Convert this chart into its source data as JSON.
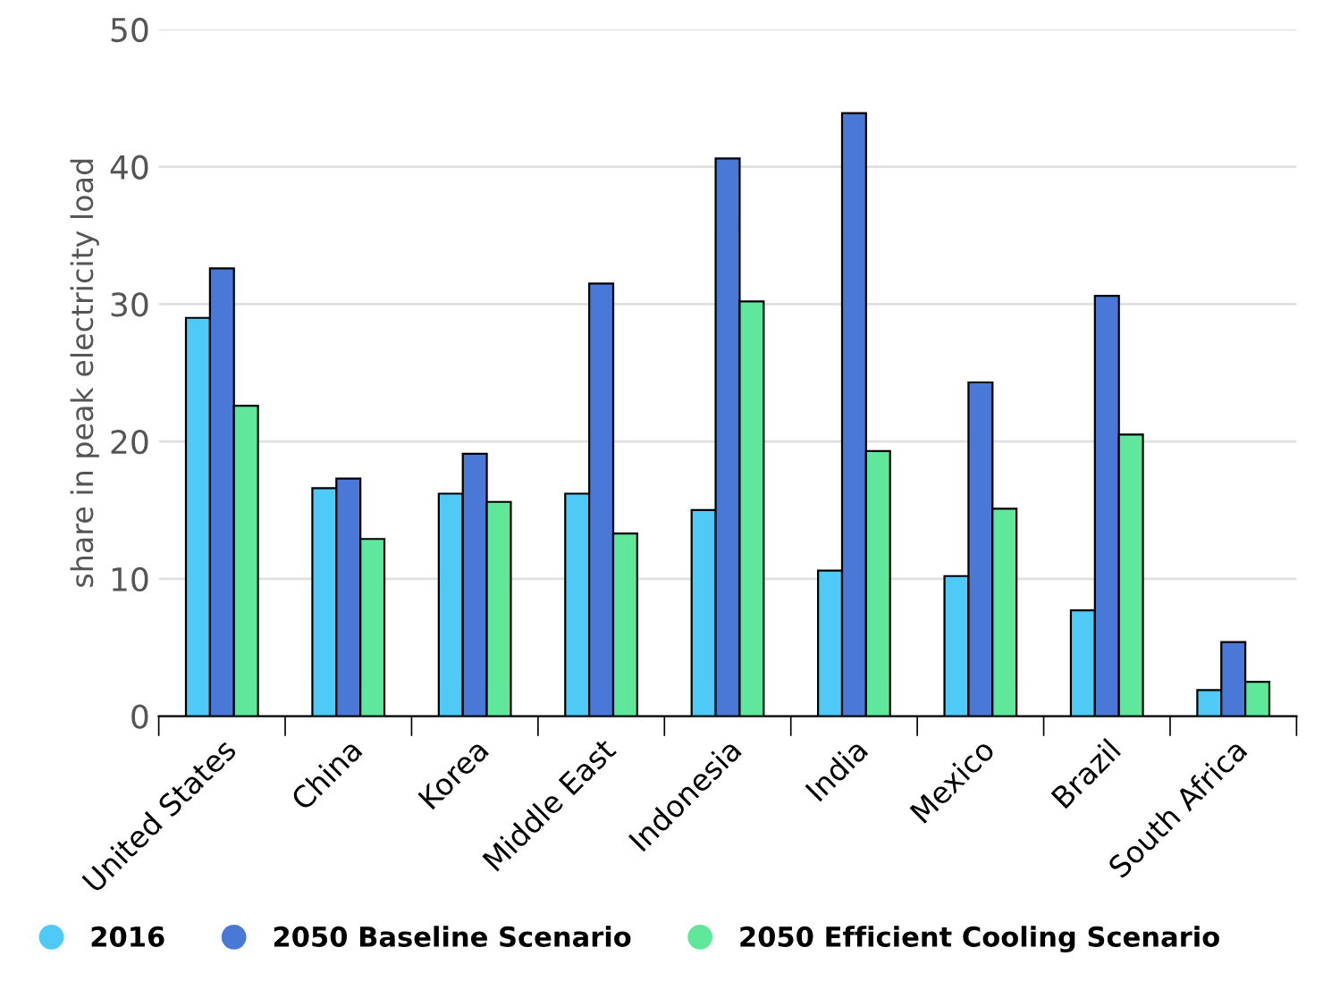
{
  "chart_data": {
    "type": "bar",
    "ylabel": "share in peak electricity load",
    "categories": [
      "United States",
      "China",
      "Korea",
      "Middle East",
      "Indonesia",
      "India",
      "Mexico",
      "Brazil",
      "South Africa"
    ],
    "series": [
      {
        "name": "2016",
        "color": "#4fc9f5",
        "values": [
          29.0,
          16.6,
          16.2,
          16.2,
          15.0,
          10.6,
          10.2,
          7.7,
          1.9
        ]
      },
      {
        "name": "2050 Baseline Scenario",
        "color": "#4a78d6",
        "values": [
          32.6,
          17.3,
          19.1,
          31.5,
          40.6,
          43.9,
          24.3,
          30.6,
          5.4
        ]
      },
      {
        "name": "2050 Efficient Cooling Scenario",
        "color": "#5fe89b",
        "values": [
          22.6,
          12.9,
          15.6,
          13.3,
          30.2,
          19.3,
          15.1,
          20.5,
          2.5
        ]
      }
    ],
    "ylim": [
      0,
      50
    ],
    "yticks": [
      0,
      10,
      20,
      30,
      40,
      50
    ],
    "grid": "y",
    "legend": "bottom left"
  }
}
